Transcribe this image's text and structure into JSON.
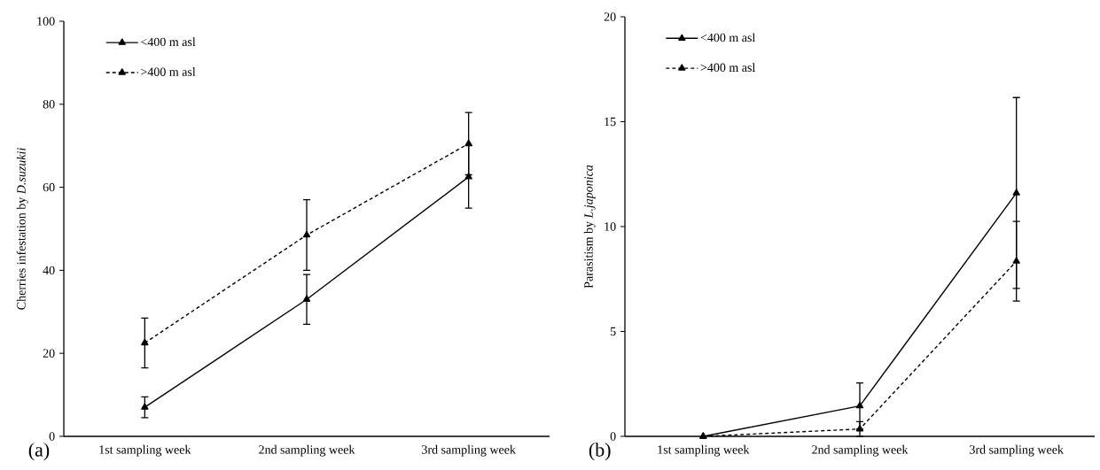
{
  "chart_data": [
    {
      "type": "line",
      "ylabel": "Cherries infestation by *D.suzukii*",
      "categories": [
        "1st sampling week",
        "2nd sampling week",
        "3rd sampling week"
      ],
      "ylim": [
        0,
        100
      ],
      "yticks": [
        0,
        20,
        40,
        60,
        80,
        100
      ],
      "legend": "top left",
      "marker": "triangle",
      "annotations": [
        "(a)"
      ],
      "series": [
        {
          "name": "<400 m asl",
          "color": "#000000",
          "line_style": "solid",
          "values": [
            7,
            33,
            62.5
          ],
          "errors": [
            2.5,
            6,
            7.5
          ]
        },
        {
          "name": ">400 m asl",
          "color": "#000000",
          "line_style": "dashed",
          "values": [
            22.5,
            48.5,
            70.5
          ],
          "errors": [
            6,
            8.5,
            7.5
          ]
        }
      ]
    },
    {
      "type": "line",
      "ylabel": "Parasitism by *L.japonica*",
      "categories": [
        "1st sampling week",
        "2nd sampling week",
        "3rd sampling week"
      ],
      "ylim": [
        0,
        20
      ],
      "yticks": [
        0,
        5,
        10,
        15,
        20
      ],
      "legend": "top left",
      "marker": "triangle",
      "annotations": [
        "(b)"
      ],
      "series": [
        {
          "name": "<400 m asl",
          "color": "#000000",
          "line_style": "solid",
          "values": [
            0,
            1.45,
            11.6
          ],
          "errors": [
            null,
            1.1,
            4.55
          ]
        },
        {
          "name": ">400 m asl",
          "color": "#000000",
          "line_style": "dashed",
          "values": [
            0,
            0.35,
            8.35
          ],
          "errors": [
            null,
            0.35,
            1.9
          ]
        }
      ]
    }
  ]
}
